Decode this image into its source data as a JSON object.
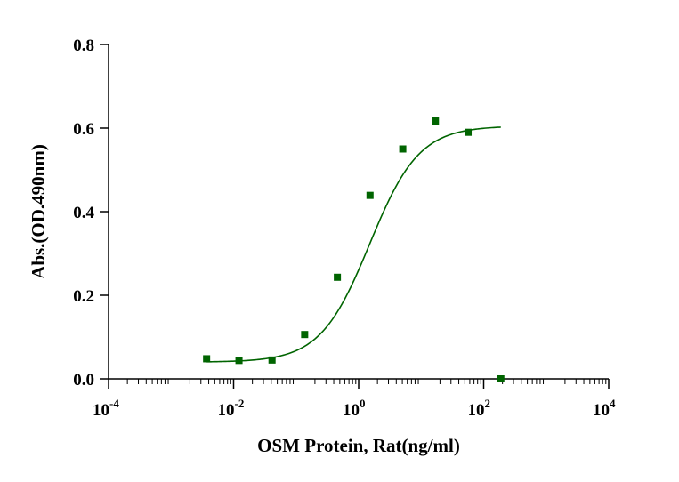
{
  "chart_data": {
    "type": "scatter",
    "title": "",
    "xlabel": "OSM Protein, Rat(ng/ml)",
    "ylabel": "Abs.(OD.490nm)",
    "xscale": "log10",
    "xlim_exponent": [
      -4,
      4
    ],
    "ylim": [
      0,
      0.8
    ],
    "x_ticks": [
      {
        "base": "10",
        "exp": "-4",
        "value": 0.0001
      },
      {
        "base": "10",
        "exp": "-2",
        "value": 0.01
      },
      {
        "base": "10",
        "exp": "0",
        "value": 1
      },
      {
        "base": "10",
        "exp": "2",
        "value": 100
      },
      {
        "base": "10",
        "exp": "4",
        "value": 10000
      }
    ],
    "y_ticks": [
      {
        "label": "0.0",
        "value": 0
      },
      {
        "label": "0.2",
        "value": 0.2
      },
      {
        "label": "0.4",
        "value": 0.4
      },
      {
        "label": "0.6",
        "value": 0.6
      },
      {
        "label": "0.8",
        "value": 0.8
      }
    ],
    "grid": false,
    "series": [
      {
        "name": "OSM Protein, Rat",
        "marker": "square",
        "color": "#006400",
        "x": [
          0.0037,
          0.0122,
          0.0412,
          0.137,
          0.457,
          1.52,
          5.08,
          16.9,
          56.4,
          188
        ],
        "y": [
          0.048,
          0.044,
          0.045,
          0.106,
          0.243,
          0.439,
          0.55,
          0.617,
          0.59,
          0
        ]
      }
    ],
    "fit": {
      "type": "4PL",
      "color": "#006400",
      "bottom": 0.04,
      "top": 0.605,
      "ec50": 1.5,
      "hill": 1.1,
      "x_range": [
        0.0037,
        188
      ]
    }
  }
}
